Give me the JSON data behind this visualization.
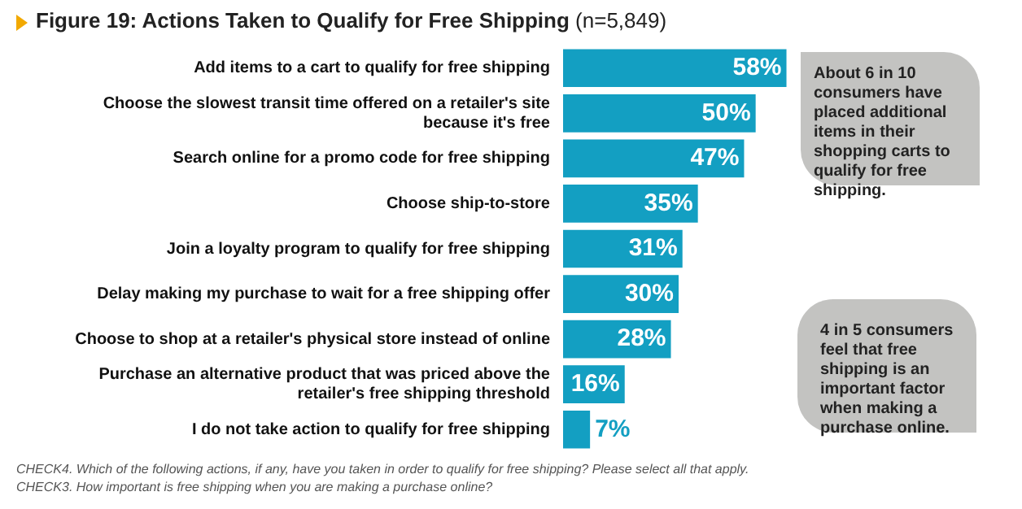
{
  "chart_data": {
    "type": "bar",
    "orientation": "horizontal",
    "title": "Figure 19: Actions Taken to Qualify for Free Shipping",
    "subtitle": "(n=5,849)",
    "categories": [
      "Add items to a cart to qualify for free shipping",
      "Choose the slowest transit time offered on a retailer's site because it's free",
      "Search online for a promo code for free shipping",
      "Choose ship-to-store",
      "Join a loyalty program to qualify for free shipping",
      "Delay making my purchase to wait for a free shipping offer",
      "Choose to shop at a retailer's physical store instead of online",
      "Purchase an alternative product that was priced above the retailer's free shipping threshold",
      "I do not take action to qualify for free shipping"
    ],
    "values": [
      58,
      50,
      47,
      35,
      31,
      30,
      28,
      16,
      7
    ],
    "color": "#139fc2",
    "value_labels": [
      "58%",
      "50%",
      "47%",
      "35%",
      "31%",
      "30%",
      "28%",
      "16%",
      "7%"
    ],
    "legend": false,
    "tick_labels": "x",
    "annotations": [
      "About 6 in 10 consumers have placed additional items in their shopping carts to qualify for free shipping.",
      "4 in 5 consumers feel that free shipping is an important factor when making a purchase online.",
      "CHECK4.  Which of the following actions, if any, have you taken in order to qualify for free shipping? Please select all that apply.",
      "CHECK3.  How important is free shipping when you are making a purchase online?"
    ]
  }
}
